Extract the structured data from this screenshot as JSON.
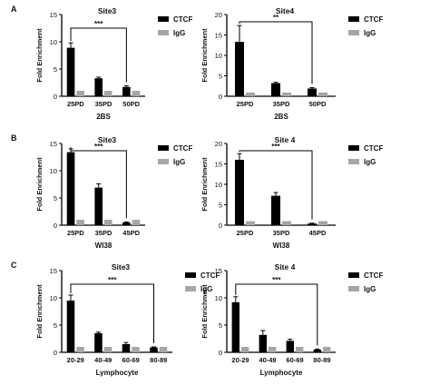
{
  "panel_labels": [
    "A",
    "B",
    "C"
  ],
  "colors": {
    "ctcf": "#000000",
    "igg": "#a6a6a6",
    "axis": "#000000"
  },
  "chart_data": [
    {
      "type": "bar",
      "title": "Site3",
      "ylabel": "Fold Enrichment",
      "xlabel": "2BS",
      "categories": [
        "25PD",
        "35PD",
        "50PD"
      ],
      "ylim": [
        0,
        15
      ],
      "yticks": [
        0,
        5,
        10,
        15
      ],
      "series": [
        {
          "name": "CTCF",
          "values": [
            8.9,
            3.3,
            1.7
          ],
          "errors": [
            0.9,
            0.2,
            0.2
          ]
        },
        {
          "name": "IgG",
          "values": [
            1.0,
            1.0,
            1.0
          ],
          "errors": [
            0,
            0,
            0
          ]
        }
      ],
      "significance": {
        "label": "***",
        "from": "25PD",
        "to": "50PD"
      },
      "legend": "top-right"
    },
    {
      "type": "bar",
      "title": "Site4",
      "ylabel": "Fold Enrichment",
      "xlabel": "2BS",
      "categories": [
        "25PD",
        "35PD",
        "50PD"
      ],
      "ylim": [
        0,
        20
      ],
      "yticks": [
        0,
        5,
        10,
        15,
        20
      ],
      "series": [
        {
          "name": "CTCF",
          "values": [
            13.3,
            3.2,
            1.9
          ],
          "errors": [
            4.0,
            0.2,
            0.2
          ]
        },
        {
          "name": "IgG",
          "values": [
            0.9,
            0.9,
            0.9
          ],
          "errors": [
            0,
            0,
            0
          ]
        }
      ],
      "significance": {
        "label": "**",
        "from": "25PD",
        "to": "50PD"
      },
      "legend": "top-right"
    },
    {
      "type": "bar",
      "title": "Site3",
      "ylabel": "Fold Enrichment",
      "xlabel": "WI38",
      "categories": [
        "25PD",
        "35PD",
        "45PD"
      ],
      "ylim": [
        0,
        15
      ],
      "yticks": [
        0,
        5,
        10,
        15
      ],
      "series": [
        {
          "name": "CTCF",
          "values": [
            13.4,
            6.9,
            0.5
          ],
          "errors": [
            0.6,
            0.7,
            0.1
          ]
        },
        {
          "name": "IgG",
          "values": [
            1.0,
            1.0,
            1.0
          ],
          "errors": [
            0,
            0,
            0
          ]
        }
      ],
      "significance": {
        "label": "***",
        "from": "25PD",
        "to": "45PD"
      },
      "legend": "top-right"
    },
    {
      "type": "bar",
      "title": "Site 4",
      "ylabel": "Fold Enrichment",
      "xlabel": "WI38",
      "categories": [
        "25PD",
        "35PD",
        "45PD"
      ],
      "ylim": [
        0,
        20
      ],
      "yticks": [
        0,
        5,
        10,
        15,
        20
      ],
      "series": [
        {
          "name": "CTCF",
          "values": [
            16.0,
            7.2,
            0.4
          ],
          "errors": [
            1.5,
            0.8,
            0.1
          ]
        },
        {
          "name": "IgG",
          "values": [
            1.0,
            1.0,
            1.0
          ],
          "errors": [
            0,
            0,
            0
          ]
        }
      ],
      "significance": {
        "label": "***",
        "from": "25PD",
        "to": "45PD"
      },
      "legend": "top-right"
    },
    {
      "type": "bar",
      "title": "Site3",
      "ylabel": "Fold Enrichment",
      "xlabel": "Lymphocyte",
      "categories": [
        "20-29",
        "40-49",
        "60-69",
        "80-89"
      ],
      "ylim": [
        0,
        15
      ],
      "yticks": [
        0,
        5,
        10,
        15
      ],
      "series": [
        {
          "name": "CTCF",
          "values": [
            9.5,
            3.5,
            1.5,
            0.9
          ],
          "errors": [
            1.0,
            0.2,
            0.3,
            0.1
          ]
        },
        {
          "name": "IgG",
          "values": [
            1.0,
            1.0,
            1.0,
            1.0
          ],
          "errors": [
            0,
            0,
            0,
            0
          ]
        }
      ],
      "significance": {
        "label": "***",
        "from": "20-29",
        "to": "80-89"
      },
      "legend": "top-right"
    },
    {
      "type": "bar",
      "title": "Site 4",
      "ylabel": "Fold Enrichment",
      "xlabel": "Lymphocyte",
      "categories": [
        "20-29",
        "40-49",
        "60-69",
        "80-89"
      ],
      "ylim": [
        0,
        15
      ],
      "yticks": [
        0,
        5,
        10,
        15
      ],
      "series": [
        {
          "name": "CTCF",
          "values": [
            9.2,
            3.2,
            2.1,
            0.5
          ],
          "errors": [
            1.0,
            0.8,
            0.3,
            0.1
          ]
        },
        {
          "name": "IgG",
          "values": [
            1.0,
            1.0,
            1.0,
            1.0
          ],
          "errors": [
            0,
            0,
            0,
            0
          ]
        }
      ],
      "significance": {
        "label": "***",
        "from": "20-29",
        "to": "80-89"
      },
      "legend": "top-right"
    }
  ]
}
